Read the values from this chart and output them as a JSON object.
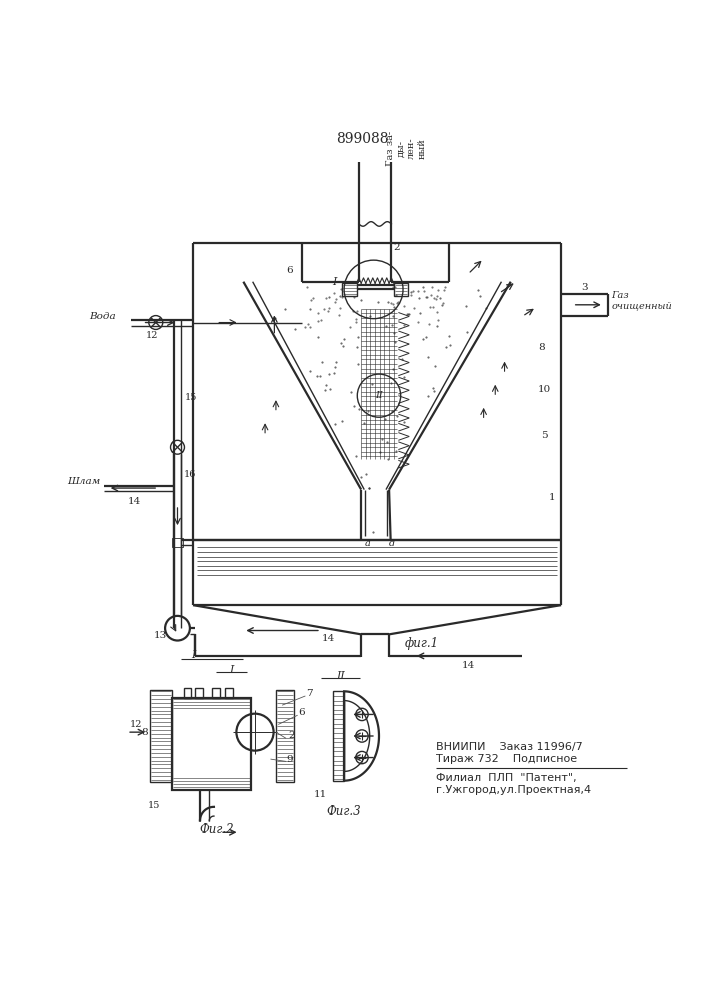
{
  "title": "899088",
  "bg_color": "#ffffff",
  "line_color": "#2a2a2a",
  "fig1_label": "фиг.1",
  "fig2_label": "Фиг.2",
  "fig3_label": "Фиг.3",
  "vniiipi_line1": "ВНИИПИ    Заказ 11996/7",
  "vniiipi_line2": "Тираж 732    Подписное",
  "filial_line1": "Филиал  ПЛП  \"Патент\",",
  "filial_line2": "г.Ужгород,ул.Проектная,4",
  "label_gaz_dirty": "Газ за-\nды-\nлен-\nный",
  "label_gaz_clean": "Газ\nочищенный",
  "label_voda": "Вода",
  "label_shlam": "Шлам"
}
